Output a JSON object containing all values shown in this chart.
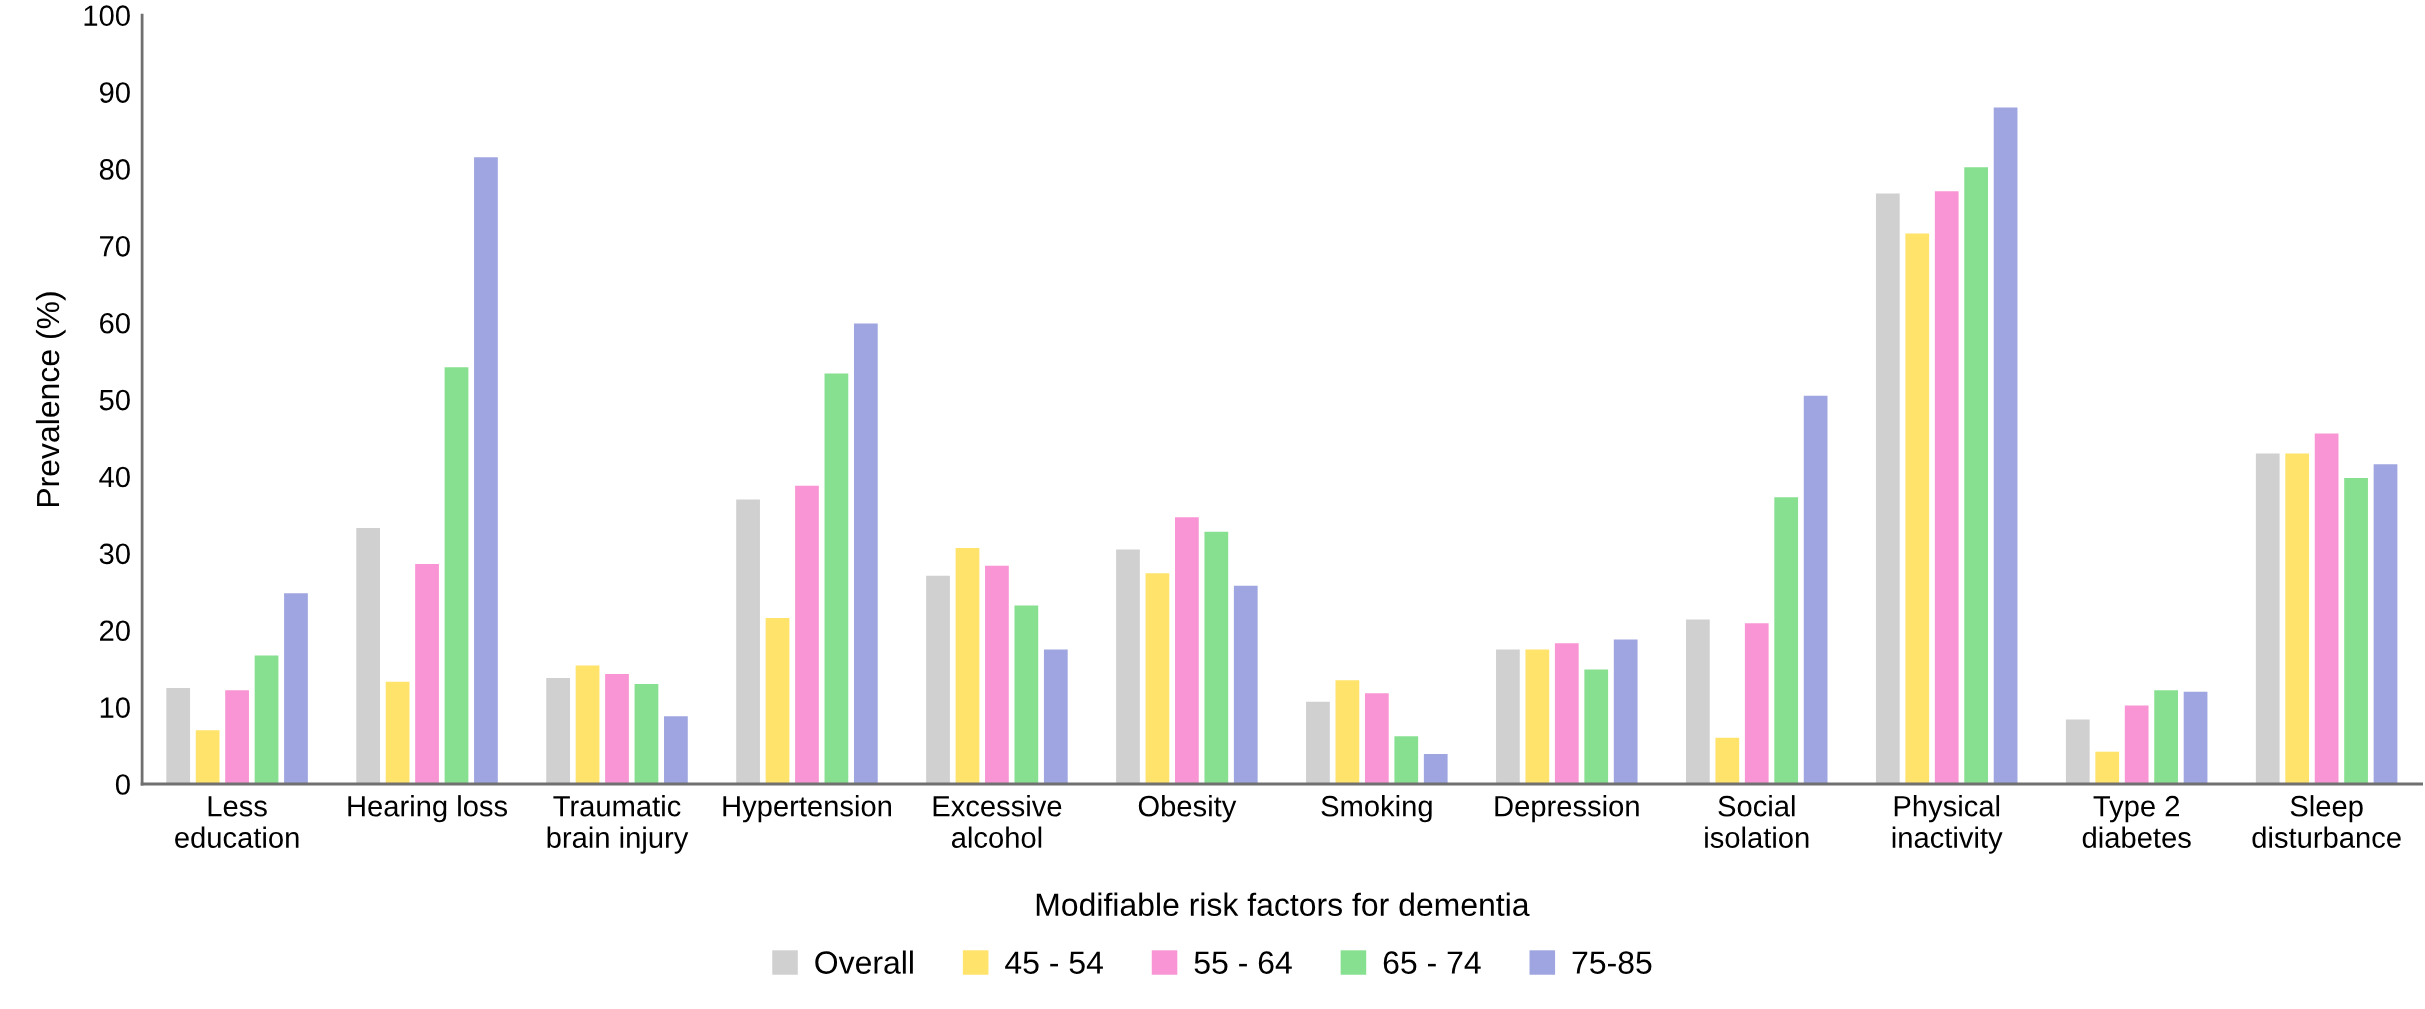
{
  "chart_data": {
    "type": "bar",
    "xlabel": "Modifiable risk factors for dementia",
    "ylabel": "Prevalence (%)",
    "categories": [
      "Less\neducation",
      "Hearing loss",
      "Traumatic\nbrain injury",
      "Hypertension",
      "Excessive\nalcohol",
      "Obesity",
      "Smoking",
      "Depression",
      "Social\nisolation",
      "Physical\ninactivity",
      "Type 2\ndiabetes",
      "Sleep\ndisturbance"
    ],
    "series": [
      {
        "name": "Overall",
        "color": "#d0d0d0",
        "values": [
          12.5,
          33.3,
          13.8,
          37.0,
          27.1,
          30.5,
          10.7,
          17.5,
          21.4,
          76.8,
          8.4,
          43.0
        ]
      },
      {
        "name": "45 - 54",
        "color": "#ffe36a",
        "values": [
          7.0,
          13.3,
          15.4,
          21.6,
          30.7,
          27.4,
          13.5,
          17.5,
          6.0,
          71.6,
          4.2,
          43.0
        ]
      },
      {
        "name": "55 - 64",
        "color": "#f995d4",
        "values": [
          12.2,
          28.6,
          14.3,
          38.8,
          28.4,
          34.7,
          11.8,
          18.3,
          20.9,
          77.1,
          10.2,
          45.6
        ]
      },
      {
        "name": "65 - 74",
        "color": "#86e08f",
        "values": [
          16.7,
          54.2,
          13.0,
          53.4,
          23.2,
          32.8,
          6.2,
          14.9,
          37.3,
          80.2,
          12.2,
          39.8
        ]
      },
      {
        "name": "75-85",
        "color": "#9ea5e0",
        "values": [
          24.8,
          81.5,
          8.8,
          59.9,
          17.5,
          25.8,
          3.9,
          18.8,
          50.5,
          88.0,
          12.0,
          41.6
        ]
      }
    ],
    "ylim": [
      0,
      100
    ],
    "yticks": [
      0,
      10,
      20,
      30,
      40,
      50,
      60,
      70,
      80,
      90,
      100
    ],
    "grid": false,
    "legend": "bottom"
  }
}
